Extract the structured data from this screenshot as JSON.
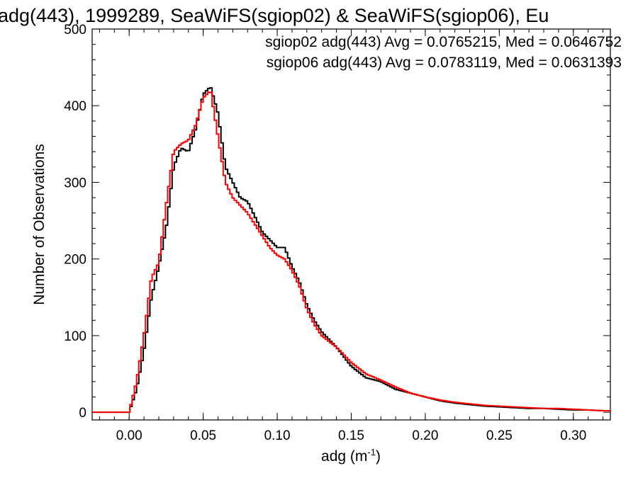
{
  "chart_data": {
    "type": "line",
    "title": "adg(443), 1999289, SeaWiFS(sgiop02) & SeaWiFS(sgiop06), Eu",
    "xlabel_base": "adg (m",
    "xlabel_sup": "-1",
    "xlabel_close": ")",
    "ylabel": "Number of Observations",
    "xlim": [
      -0.025,
      0.325
    ],
    "ylim": [
      -10,
      500
    ],
    "xticks": [
      0.0,
      0.05,
      0.1,
      0.15,
      0.2,
      0.25,
      0.3
    ],
    "xtick_labels": [
      "0.00",
      "0.05",
      "0.10",
      "0.15",
      "0.20",
      "0.25",
      "0.30"
    ],
    "yticks": [
      0,
      100,
      200,
      300,
      400,
      500
    ],
    "ytick_labels": [
      "0",
      "100",
      "200",
      "300",
      "400",
      "500"
    ],
    "grid": false,
    "legend_position": "top-right",
    "annotations": [
      {
        "text": "sgiop02 adg(443) Avg = 0.0765215, Med = 0.0646752",
        "color": "#000000"
      },
      {
        "text": "sgiop06 adg(443) Avg = 0.0783119, Med = 0.0631393",
        "color": "#ff0000"
      }
    ],
    "series": [
      {
        "name": "sgiop02",
        "color": "#000000",
        "x": [
          -0.02,
          0.0,
          0.005,
          0.01,
          0.015,
          0.02,
          0.025,
          0.03,
          0.035,
          0.04,
          0.045,
          0.05,
          0.055,
          0.06,
          0.065,
          0.07,
          0.075,
          0.08,
          0.085,
          0.09,
          0.095,
          0.1,
          0.105,
          0.11,
          0.115,
          0.12,
          0.125,
          0.13,
          0.14,
          0.15,
          0.16,
          0.17,
          0.18,
          0.19,
          0.2,
          0.21,
          0.22,
          0.23,
          0.24,
          0.25,
          0.26,
          0.27,
          0.28,
          0.29,
          0.3,
          0.31,
          0.32
        ],
        "values": [
          0,
          0,
          30,
          80,
          150,
          190,
          240,
          320,
          345,
          340,
          370,
          415,
          425,
          390,
          320,
          300,
          280,
          275,
          255,
          235,
          225,
          215,
          215,
          190,
          170,
          140,
          120,
          105,
          85,
          60,
          45,
          40,
          30,
          25,
          20,
          15,
          12,
          10,
          8,
          7,
          6,
          5,
          5,
          4,
          3,
          3,
          2
        ]
      },
      {
        "name": "sgiop06",
        "color": "#ff0000",
        "x": [
          -0.02,
          0.0,
          0.005,
          0.01,
          0.015,
          0.02,
          0.025,
          0.03,
          0.035,
          0.04,
          0.045,
          0.05,
          0.055,
          0.06,
          0.065,
          0.07,
          0.075,
          0.08,
          0.085,
          0.09,
          0.095,
          0.1,
          0.105,
          0.11,
          0.115,
          0.12,
          0.125,
          0.13,
          0.14,
          0.15,
          0.16,
          0.17,
          0.18,
          0.19,
          0.2,
          0.21,
          0.22,
          0.23,
          0.24,
          0.25,
          0.26,
          0.27,
          0.28,
          0.29,
          0.3,
          0.31,
          0.32
        ],
        "values": [
          0,
          0,
          40,
          100,
          175,
          195,
          270,
          340,
          350,
          355,
          375,
          410,
          420,
          360,
          300,
          280,
          270,
          260,
          245,
          230,
          215,
          205,
          200,
          185,
          165,
          135,
          115,
          100,
          85,
          65,
          50,
          42,
          33,
          25,
          20,
          16,
          13,
          11,
          9,
          8,
          7,
          6,
          5,
          5,
          4,
          3,
          2
        ]
      }
    ]
  }
}
